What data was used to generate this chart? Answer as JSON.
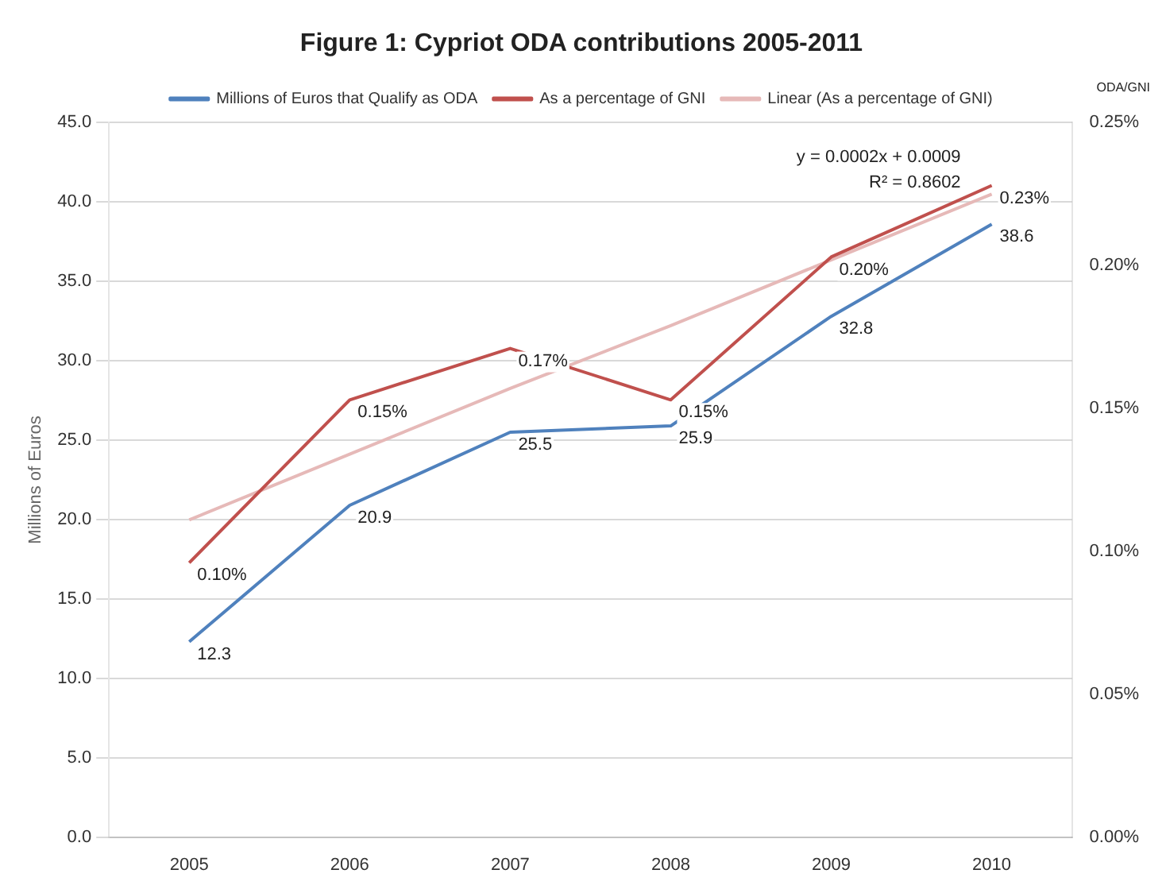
{
  "chart_data": {
    "type": "line",
    "title": "Figure 1: Cypriot ODA contributions 2005-2011",
    "ylabel": "Millions of Euros",
    "y2label": "ODA/GNI",
    "categories": [
      "2005",
      "2006",
      "2007",
      "2008",
      "2009",
      "2010"
    ],
    "series": [
      {
        "name": "Millions of Euros that Qualify as ODA",
        "color": "#4f81bd",
        "values": [
          12.3,
          20.9,
          25.5,
          25.9,
          32.8,
          38.6
        ],
        "value_labels": [
          "12.3",
          "20.9",
          "25.5",
          "25.9",
          "32.8",
          "38.6"
        ]
      },
      {
        "name": "As a percentage of GNI",
        "color": "#c0504d",
        "axis": "y2",
        "values": [
          0.096,
          0.153,
          0.171,
          0.153,
          0.203,
          0.228
        ],
        "value_labels": [
          "0.10%",
          "0.15%",
          "0.17%",
          "0.15%",
          "0.20%",
          "0.23%"
        ]
      },
      {
        "name": "Linear (As a percentage of GNI)",
        "color": "#e6b9b8",
        "axis": "y2",
        "values": [
          0.111,
          0.134,
          0.157,
          0.179,
          0.202,
          0.225
        ]
      }
    ],
    "ylim": [
      0,
      45
    ],
    "yticks": [
      {
        "value": 0,
        "label": "0.0"
      },
      {
        "value": 5,
        "label": "5.0"
      },
      {
        "value": 10,
        "label": "10.0"
      },
      {
        "value": 15,
        "label": "15.0"
      },
      {
        "value": 20,
        "label": "20.0"
      },
      {
        "value": 25,
        "label": "25.0"
      },
      {
        "value": 30,
        "label": "30.0"
      },
      {
        "value": 35,
        "label": "35.0"
      },
      {
        "value": 40,
        "label": "40.0"
      },
      {
        "value": 45,
        "label": "45.0"
      }
    ],
    "y2lim": [
      0,
      0.25
    ],
    "y2ticks": [
      {
        "value": 0,
        "label": "0.00%"
      },
      {
        "value": 0.05,
        "label": "0.05%"
      },
      {
        "value": 0.1,
        "label": "0.10%"
      },
      {
        "value": 0.15,
        "label": "0.15%"
      },
      {
        "value": 0.2,
        "label": "0.20%"
      },
      {
        "value": 0.25,
        "label": "0.25%"
      }
    ],
    "annotations": [
      "y = 0.0002x + 0.0009",
      "R² = 0.8602"
    ],
    "grid": "y",
    "legend": "top",
    "marker": "none",
    "line_style": "solid"
  }
}
